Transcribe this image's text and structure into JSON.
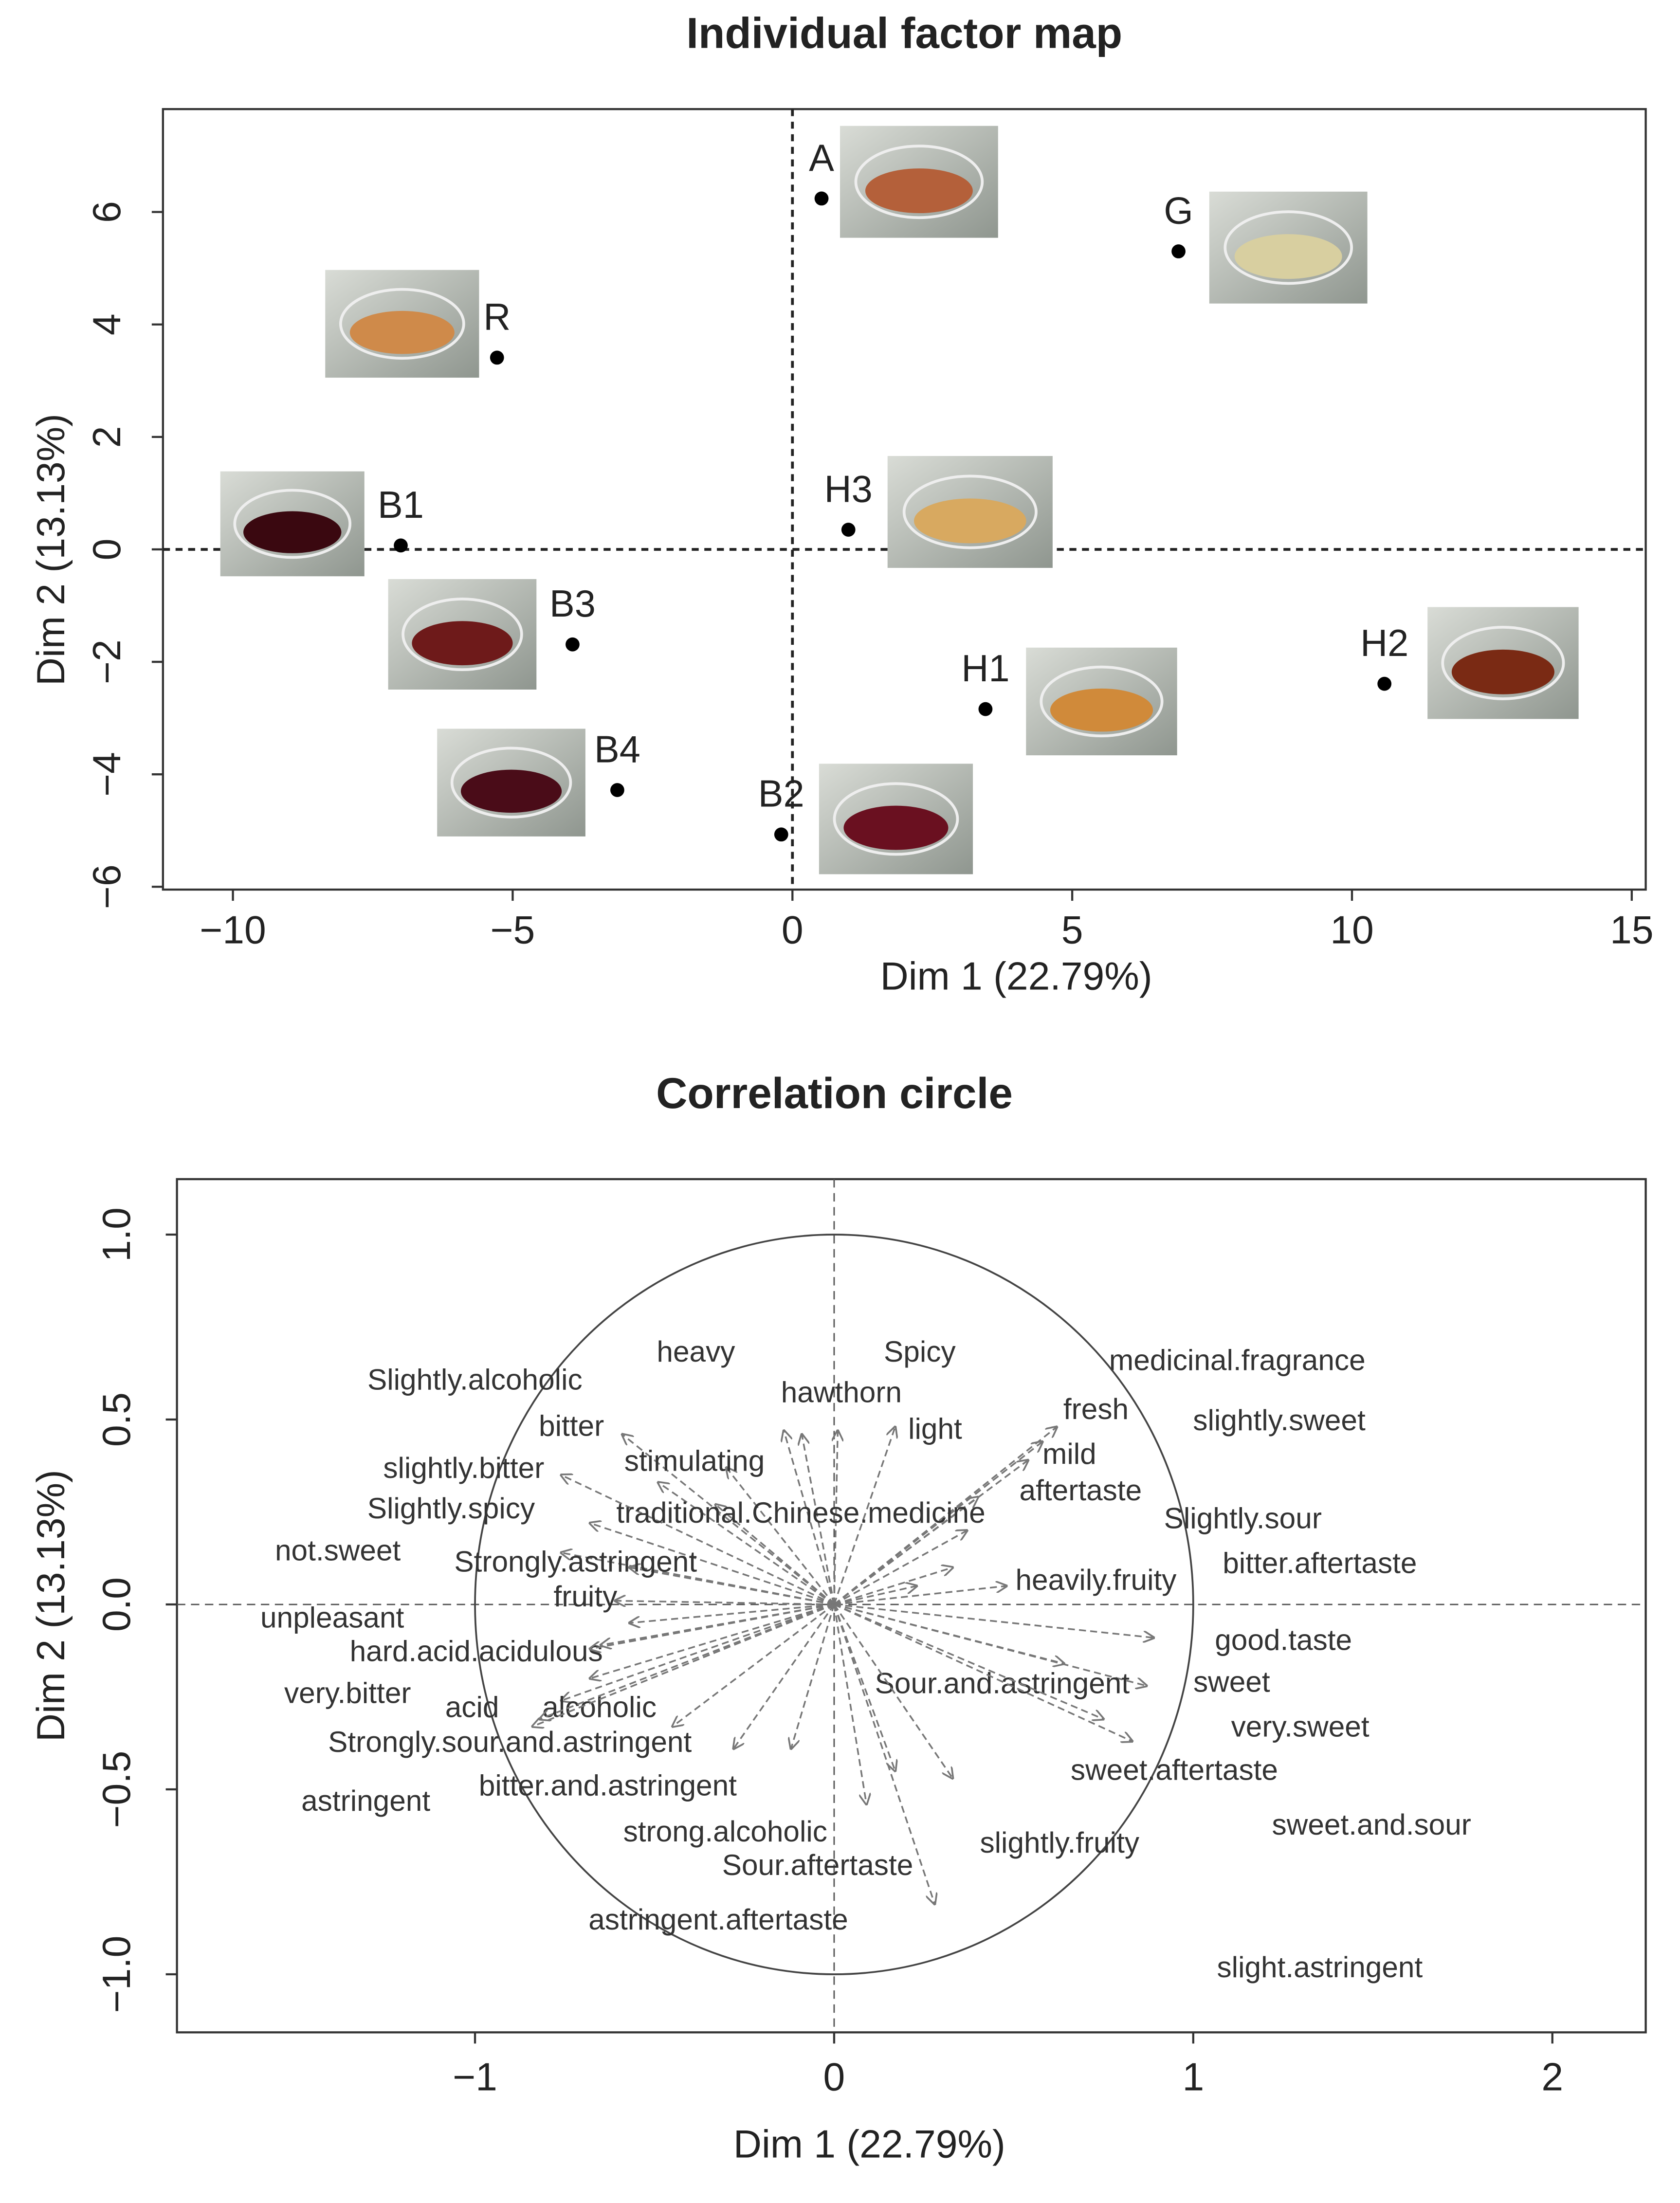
{
  "chart_data": [
    {
      "type": "scatter",
      "title": "Individual factor map",
      "xlabel": "Dim 1 (22.79%)",
      "ylabel": "Dim 2 (13.13%)",
      "labels": [
        "A",
        "G",
        "R",
        "B1",
        "H3",
        "B3",
        "H1",
        "H2",
        "B4",
        "B2"
      ],
      "x": [
        0.52,
        6.9,
        -5.28,
        -7.0,
        1.0,
        -3.93,
        3.45,
        10.58,
        -3.13,
        -0.2
      ],
      "y": [
        6.24,
        5.3,
        3.41,
        0.07,
        0.35,
        -1.69,
        -2.84,
        -2.39,
        -4.28,
        -5.07
      ],
      "color": "#000000",
      "xlim": [
        -11.25,
        15.25
      ],
      "ylim": [
        -6.05,
        7.83
      ],
      "xticks": [
        {
          "value": -10,
          "label": "−10"
        },
        {
          "value": -5,
          "label": "−5"
        },
        0,
        5,
        10,
        15
      ],
      "yticks": [
        {
          "value": -6,
          "label": "−6"
        },
        {
          "value": -4,
          "label": "−4"
        },
        {
          "value": -2,
          "label": "−2"
        },
        0,
        2,
        4,
        6
      ]
    },
    {
      "type": "correlation-circle",
      "title": "Correlation circle",
      "xlabel": "Dim 1 (22.79%)",
      "ylabel": "Dim 2 (13.13%)",
      "variables": [
        "heavy",
        "Spicy",
        "medicinal.fragrance",
        "Slightly.alcoholic",
        "hawthorn",
        "fresh",
        "slightly.sweet",
        "bitter",
        "light",
        "mild",
        "stimulating",
        "slightly.bitter",
        "aftertaste",
        "Slightly.spicy",
        "traditional.Chinese.medicine",
        "Slightly.sour",
        "not.sweet",
        "Strongly.astringent",
        "bitter.aftertaste",
        "heavily.fruity",
        "fruity",
        "unpleasant",
        "good.taste",
        "hard.acid.acidulous",
        "sweet",
        "Sour.and.astringent",
        "very.bitter",
        "acid",
        "alcoholic",
        "very.sweet",
        "Strongly.sour.and.astringent",
        "sweet.aftertaste",
        "astringent",
        "bitter.and.astringent",
        "sweet.and.sour",
        "strong.alcoholic",
        "slightly.fruity",
        "Sour.aftertaste",
        "astringent.aftertaste",
        "slight.astringent"
      ],
      "x": [
        -0.14,
        0.01,
        0.62,
        -0.3,
        -0.09,
        0.58,
        0.37,
        -0.59,
        0.17,
        0.54,
        -0.49,
        -0.76,
        0.4,
        -0.68,
        -0.33,
        0.33,
        -0.76,
        -0.57,
        0.48,
        0.23,
        -0.61,
        -0.57,
        0.89,
        -0.65,
        0.87,
        0.64,
        -0.68,
        -0.68,
        -0.76,
        0.83,
        -0.84,
        0.75,
        -0.82,
        -0.45,
        0.33,
        -0.28,
        0.17,
        0.09,
        -0.12,
        0.28
      ],
      "y": [
        0.47,
        0.47,
        0.48,
        0.37,
        0.46,
        0.44,
        0.2,
        0.46,
        0.48,
        0.39,
        0.33,
        0.35,
        0.29,
        0.22,
        0.27,
        0.1,
        0.14,
        0.1,
        0.05,
        0.05,
        0.01,
        -0.05,
        -0.09,
        -0.11,
        -0.22,
        -0.16,
        -0.12,
        -0.2,
        -0.26,
        -0.37,
        -0.33,
        -0.31,
        -0.31,
        -0.33,
        -0.47,
        -0.39,
        -0.45,
        -0.54,
        -0.39,
        -0.81
      ],
      "color": "#777777",
      "xlim": [
        -1.83,
        2.26
      ],
      "ylim": [
        -1.157,
        1.15
      ],
      "xticks": [
        {
          "value": -1,
          "label": "−1"
        },
        0,
        1,
        2
      ],
      "yticks": [
        {
          "value": -1,
          "label": "−1.0"
        },
        {
          "value": -0.5,
          "label": "−0.5"
        },
        {
          "value": 0,
          "label": "0.0"
        },
        {
          "value": 0.5,
          "label": "0.5"
        },
        {
          "value": 1,
          "label": "1.0"
        }
      ]
    }
  ]
}
